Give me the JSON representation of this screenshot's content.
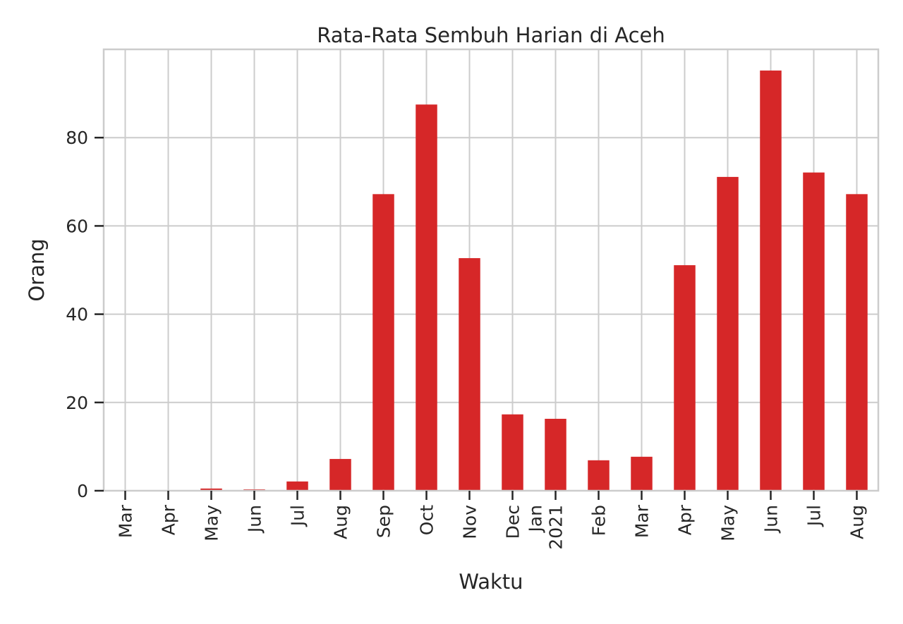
{
  "chart_data": {
    "type": "bar",
    "title": "Rata-Rata Sembuh Harian di Aceh",
    "xlabel": "Waktu",
    "ylabel": "Orang",
    "categories": [
      [
        "Mar"
      ],
      [
        "Apr"
      ],
      [
        "May"
      ],
      [
        "Jun"
      ],
      [
        "Jul"
      ],
      [
        "Aug"
      ],
      [
        "Sep"
      ],
      [
        "Oct"
      ],
      [
        "Nov"
      ],
      [
        "Dec"
      ],
      [
        "Jan",
        "2021"
      ],
      [
        "Feb"
      ],
      [
        "Mar"
      ],
      [
        "Apr"
      ],
      [
        "May"
      ],
      [
        "Jun"
      ],
      [
        "Jul"
      ],
      [
        "Aug"
      ]
    ],
    "values": [
      0.0,
      0.0,
      0.5,
      0.3,
      2.1,
      7.2,
      67.2,
      87.5,
      52.7,
      17.3,
      16.3,
      6.9,
      7.7,
      51.1,
      71.1,
      95.2,
      72.1,
      67.2
    ],
    "ylim": [
      0,
      100
    ],
    "yticks": [
      0,
      20,
      40,
      60,
      80
    ],
    "grid": true,
    "bar_color": "#d62728",
    "grid_color": "#cccccc"
  }
}
